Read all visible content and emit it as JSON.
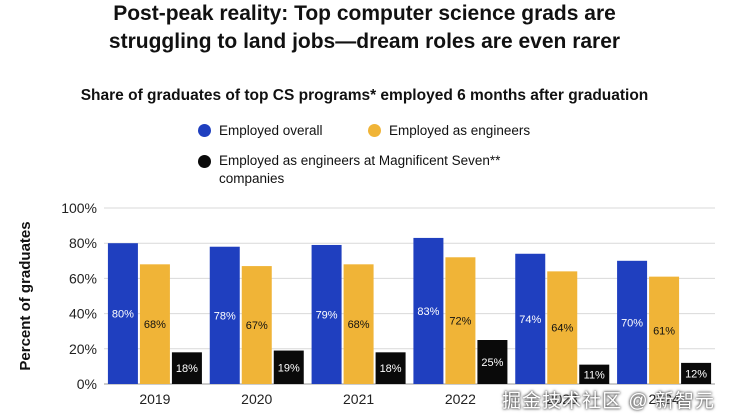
{
  "title_line1": "Post-peak reality: Top computer science grads are",
  "title_line2": "struggling to land jobs—dream roles are even rarer",
  "watermark": "掘金技术社区 @ 新智元",
  "chart_data": {
    "type": "bar",
    "title": "Share of graduates of top CS programs* employed 6 months after graduation",
    "ylabel": "Percent of graduates",
    "xlabel": "",
    "categories": [
      "2019",
      "2020",
      "2021",
      "2022",
      "2023",
      "2024"
    ],
    "ylim": [
      0,
      100
    ],
    "yticks": [
      "0%",
      "20%",
      "40%",
      "60%",
      "80%",
      "100%"
    ],
    "grid": true,
    "legend_position": "top",
    "series": [
      {
        "name": "Employed overall",
        "color": "#1f3fbf",
        "values": [
          80,
          78,
          79,
          83,
          74,
          70
        ],
        "labels": [
          "80%",
          "78%",
          "79%",
          "83%",
          "74%",
          "70%"
        ]
      },
      {
        "name": "Employed as engineers",
        "color": "#f0b437",
        "values": [
          68,
          67,
          68,
          72,
          64,
          61
        ],
        "labels": [
          "68%",
          "67%",
          "68%",
          "72%",
          "64%",
          "61%"
        ]
      },
      {
        "name": "Employed as engineers at Magnificent Seven** companies",
        "color": "#0a0a0a",
        "values": [
          18,
          19,
          18,
          25,
          11,
          12
        ],
        "labels": [
          "18%",
          "19%",
          "18%",
          "25%",
          "11%",
          "12%"
        ]
      }
    ]
  }
}
